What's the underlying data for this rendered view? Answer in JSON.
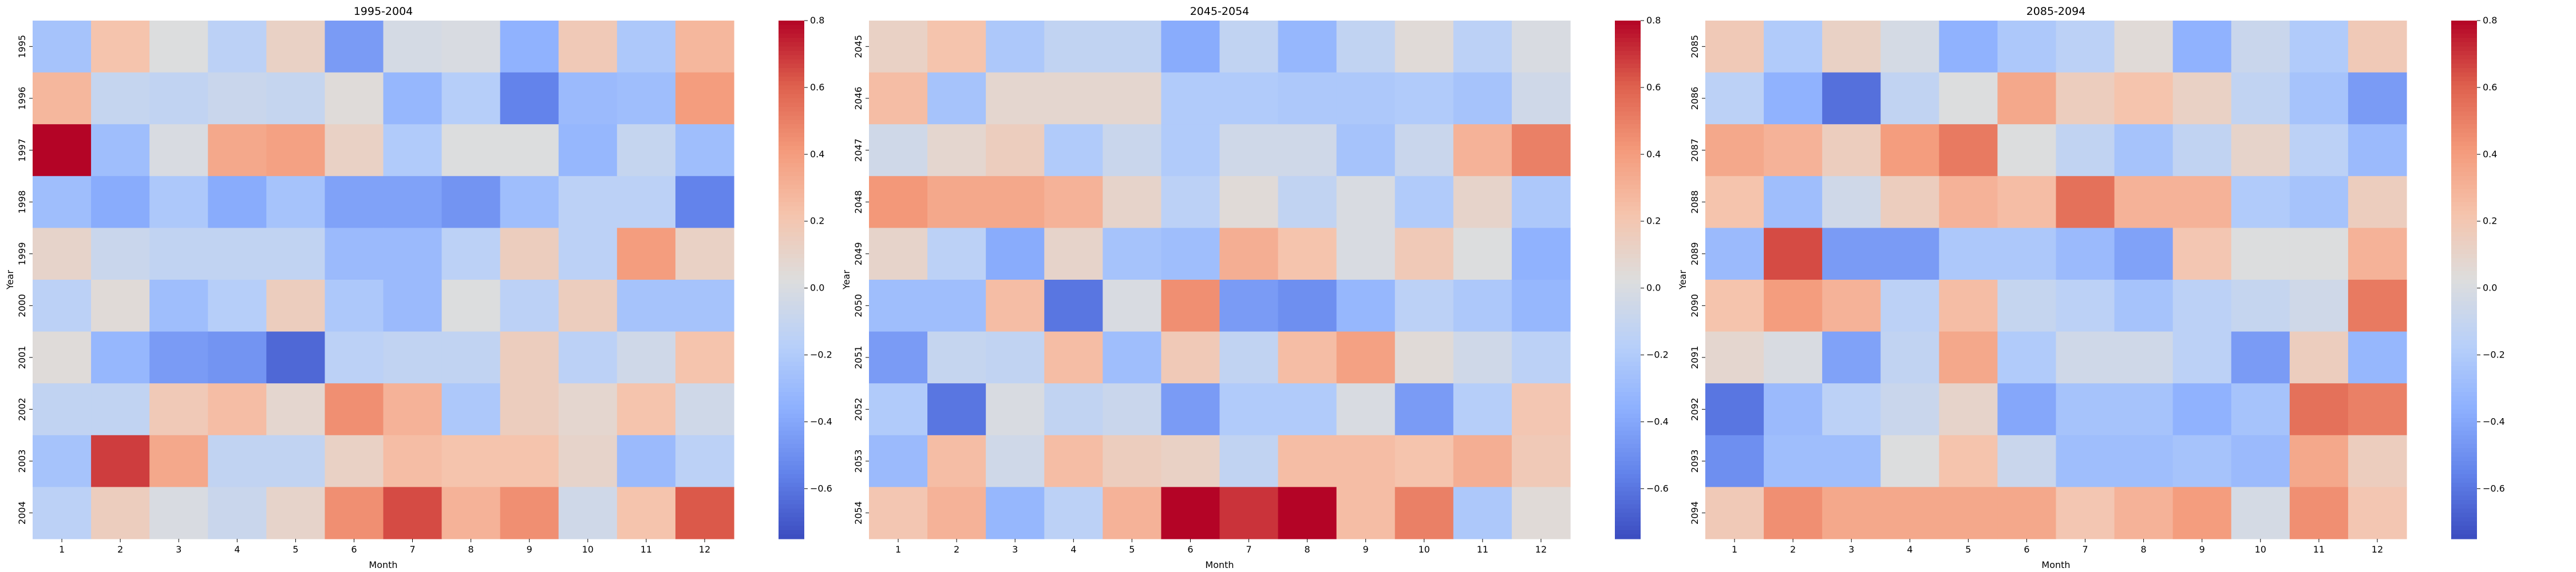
{
  "chart_data": [
    {
      "type": "heatmap",
      "title": "1995-2004",
      "xlabel": "Month",
      "ylabel": "Year",
      "x_categories": [
        "1",
        "2",
        "3",
        "4",
        "5",
        "6",
        "7",
        "8",
        "9",
        "10",
        "11",
        "12"
      ],
      "y_categories": [
        "1995",
        "1996",
        "1997",
        "1998",
        "1999",
        "2000",
        "2001",
        "2002",
        "2003",
        "2004"
      ],
      "values": [
        [
          -0.25,
          0.22,
          0.02,
          -0.15,
          0.12,
          -0.45,
          -0.02,
          0.0,
          -0.35,
          0.18,
          -0.22,
          0.28
        ],
        [
          0.28,
          -0.1,
          -0.12,
          -0.08,
          -0.1,
          0.04,
          -0.32,
          -0.18,
          -0.55,
          -0.3,
          -0.28,
          0.4
        ],
        [
          0.8,
          -0.28,
          0.0,
          0.35,
          0.38,
          0.12,
          -0.2,
          0.02,
          0.02,
          -0.32,
          -0.1,
          -0.28
        ],
        [
          -0.28,
          -0.38,
          -0.22,
          -0.38,
          -0.25,
          -0.42,
          -0.42,
          -0.48,
          -0.28,
          -0.15,
          -0.15,
          -0.55
        ],
        [
          0.1,
          -0.08,
          -0.12,
          -0.12,
          -0.12,
          -0.3,
          -0.3,
          -0.15,
          0.15,
          -0.15,
          0.4,
          0.12
        ],
        [
          -0.15,
          0.05,
          -0.28,
          -0.18,
          0.15,
          -0.22,
          -0.3,
          0.02,
          -0.15,
          0.15,
          -0.25,
          -0.25
        ],
        [
          0.04,
          -0.32,
          -0.45,
          -0.48,
          -0.65,
          -0.15,
          -0.12,
          -0.12,
          0.15,
          -0.15,
          -0.05,
          0.22
        ],
        [
          -0.12,
          -0.12,
          0.18,
          0.25,
          0.08,
          0.45,
          0.3,
          -0.22,
          0.15,
          0.08,
          0.22,
          -0.05
        ],
        [
          -0.25,
          0.68,
          0.35,
          -0.12,
          -0.12,
          0.12,
          0.25,
          0.22,
          0.22,
          0.1,
          -0.3,
          -0.15
        ],
        [
          -0.15,
          0.15,
          0.0,
          -0.08,
          0.1,
          0.45,
          0.65,
          0.3,
          0.45,
          -0.05,
          0.22,
          0.62
        ]
      ],
      "colorbar": {
        "vmin": -0.75,
        "vmax": 0.8,
        "ticks": [
          -0.6,
          -0.4,
          -0.2,
          0.0,
          0.2,
          0.4,
          0.6,
          0.8
        ],
        "colormap": "coolwarm"
      }
    },
    {
      "type": "heatmap",
      "title": "2045-2054",
      "xlabel": "Month",
      "ylabel": "Year",
      "x_categories": [
        "1",
        "2",
        "3",
        "4",
        "5",
        "6",
        "7",
        "8",
        "9",
        "10",
        "11",
        "12"
      ],
      "y_categories": [
        "2045",
        "2046",
        "2047",
        "2048",
        "2049",
        "2050",
        "2051",
        "2052",
        "2053",
        "2054"
      ],
      "values": [
        [
          0.12,
          0.22,
          -0.22,
          -0.12,
          -0.12,
          -0.38,
          -0.12,
          -0.32,
          -0.12,
          0.05,
          -0.15,
          0.0
        ],
        [
          0.25,
          -0.25,
          0.08,
          0.08,
          0.08,
          -0.2,
          -0.2,
          -0.22,
          -0.22,
          -0.2,
          -0.25,
          -0.05
        ],
        [
          -0.05,
          0.08,
          0.15,
          -0.2,
          -0.08,
          -0.2,
          -0.05,
          -0.05,
          -0.25,
          -0.08,
          0.3,
          0.5
        ],
        [
          0.42,
          0.35,
          0.35,
          0.3,
          0.1,
          -0.15,
          0.05,
          -0.12,
          0.0,
          -0.2,
          0.1,
          -0.22
        ],
        [
          0.1,
          -0.15,
          -0.38,
          0.1,
          -0.25,
          -0.28,
          0.32,
          0.22,
          0.0,
          0.18,
          0.02,
          -0.35
        ],
        [
          -0.28,
          -0.28,
          0.25,
          -0.6,
          0.0,
          0.45,
          -0.45,
          -0.5,
          -0.32,
          -0.15,
          -0.22,
          -0.32
        ],
        [
          -0.45,
          -0.1,
          -0.12,
          0.25,
          -0.28,
          0.18,
          -0.12,
          0.25,
          0.38,
          0.05,
          -0.05,
          -0.15
        ],
        [
          -0.2,
          -0.6,
          0.0,
          -0.12,
          -0.08,
          -0.45,
          -0.2,
          -0.2,
          0.0,
          -0.45,
          -0.18,
          0.2
        ],
        [
          -0.3,
          0.25,
          -0.05,
          0.25,
          0.15,
          0.12,
          -0.12,
          0.25,
          0.25,
          0.22,
          0.32,
          0.18
        ],
        [
          0.2,
          0.3,
          -0.32,
          -0.15,
          0.3,
          0.8,
          0.7,
          0.8,
          0.25,
          0.5,
          -0.22,
          0.05
        ]
      ],
      "colorbar": {
        "vmin": -0.75,
        "vmax": 0.8,
        "ticks": [
          -0.6,
          -0.4,
          -0.2,
          0.0,
          0.2,
          0.4,
          0.6,
          0.8
        ],
        "colormap": "coolwarm"
      }
    },
    {
      "type": "heatmap",
      "title": "2085-2094",
      "xlabel": "Month",
      "ylabel": "Year",
      "x_categories": [
        "1",
        "2",
        "3",
        "4",
        "5",
        "6",
        "7",
        "8",
        "9",
        "10",
        "11",
        "12"
      ],
      "y_categories": [
        "2085",
        "2086",
        "2087",
        "2088",
        "2089",
        "2090",
        "2091",
        "2092",
        "2093",
        "2094"
      ],
      "values": [
        [
          0.18,
          -0.2,
          0.12,
          -0.02,
          -0.35,
          -0.22,
          -0.15,
          0.05,
          -0.35,
          -0.08,
          -0.2,
          0.18
        ],
        [
          -0.15,
          -0.35,
          -0.62,
          -0.12,
          0.02,
          0.35,
          0.15,
          0.22,
          0.12,
          -0.12,
          -0.25,
          -0.45
        ],
        [
          0.35,
          0.3,
          0.15,
          0.4,
          0.52,
          0.02,
          -0.12,
          -0.25,
          -0.12,
          0.1,
          -0.15,
          -0.3
        ],
        [
          0.22,
          -0.28,
          -0.05,
          0.15,
          0.3,
          0.25,
          0.55,
          0.3,
          0.3,
          -0.2,
          -0.25,
          0.15
        ],
        [
          -0.3,
          0.65,
          -0.45,
          -0.45,
          -0.22,
          -0.22,
          -0.3,
          -0.42,
          0.2,
          0.02,
          0.02,
          0.3
        ],
        [
          0.22,
          0.4,
          0.3,
          -0.15,
          0.25,
          -0.1,
          -0.15,
          -0.25,
          -0.15,
          -0.1,
          -0.05,
          0.52
        ],
        [
          0.08,
          0.0,
          -0.42,
          -0.12,
          0.35,
          -0.2,
          -0.05,
          -0.05,
          -0.15,
          -0.45,
          0.15,
          -0.32
        ],
        [
          -0.6,
          -0.3,
          -0.15,
          -0.08,
          0.1,
          -0.4,
          -0.25,
          -0.25,
          -0.35,
          -0.25,
          0.55,
          0.5
        ],
        [
          -0.5,
          -0.28,
          -0.28,
          0.02,
          0.22,
          -0.08,
          -0.28,
          -0.28,
          -0.25,
          -0.3,
          0.35,
          0.15
        ],
        [
          0.18,
          0.45,
          0.35,
          0.35,
          0.35,
          0.35,
          0.2,
          0.3,
          0.4,
          -0.02,
          0.45,
          0.2
        ]
      ],
      "colorbar": {
        "vmin": -0.75,
        "vmax": 0.8,
        "ticks": [
          -0.6,
          -0.4,
          -0.2,
          0.0,
          0.2,
          0.4,
          0.6,
          0.8
        ],
        "colormap": "coolwarm"
      }
    }
  ]
}
